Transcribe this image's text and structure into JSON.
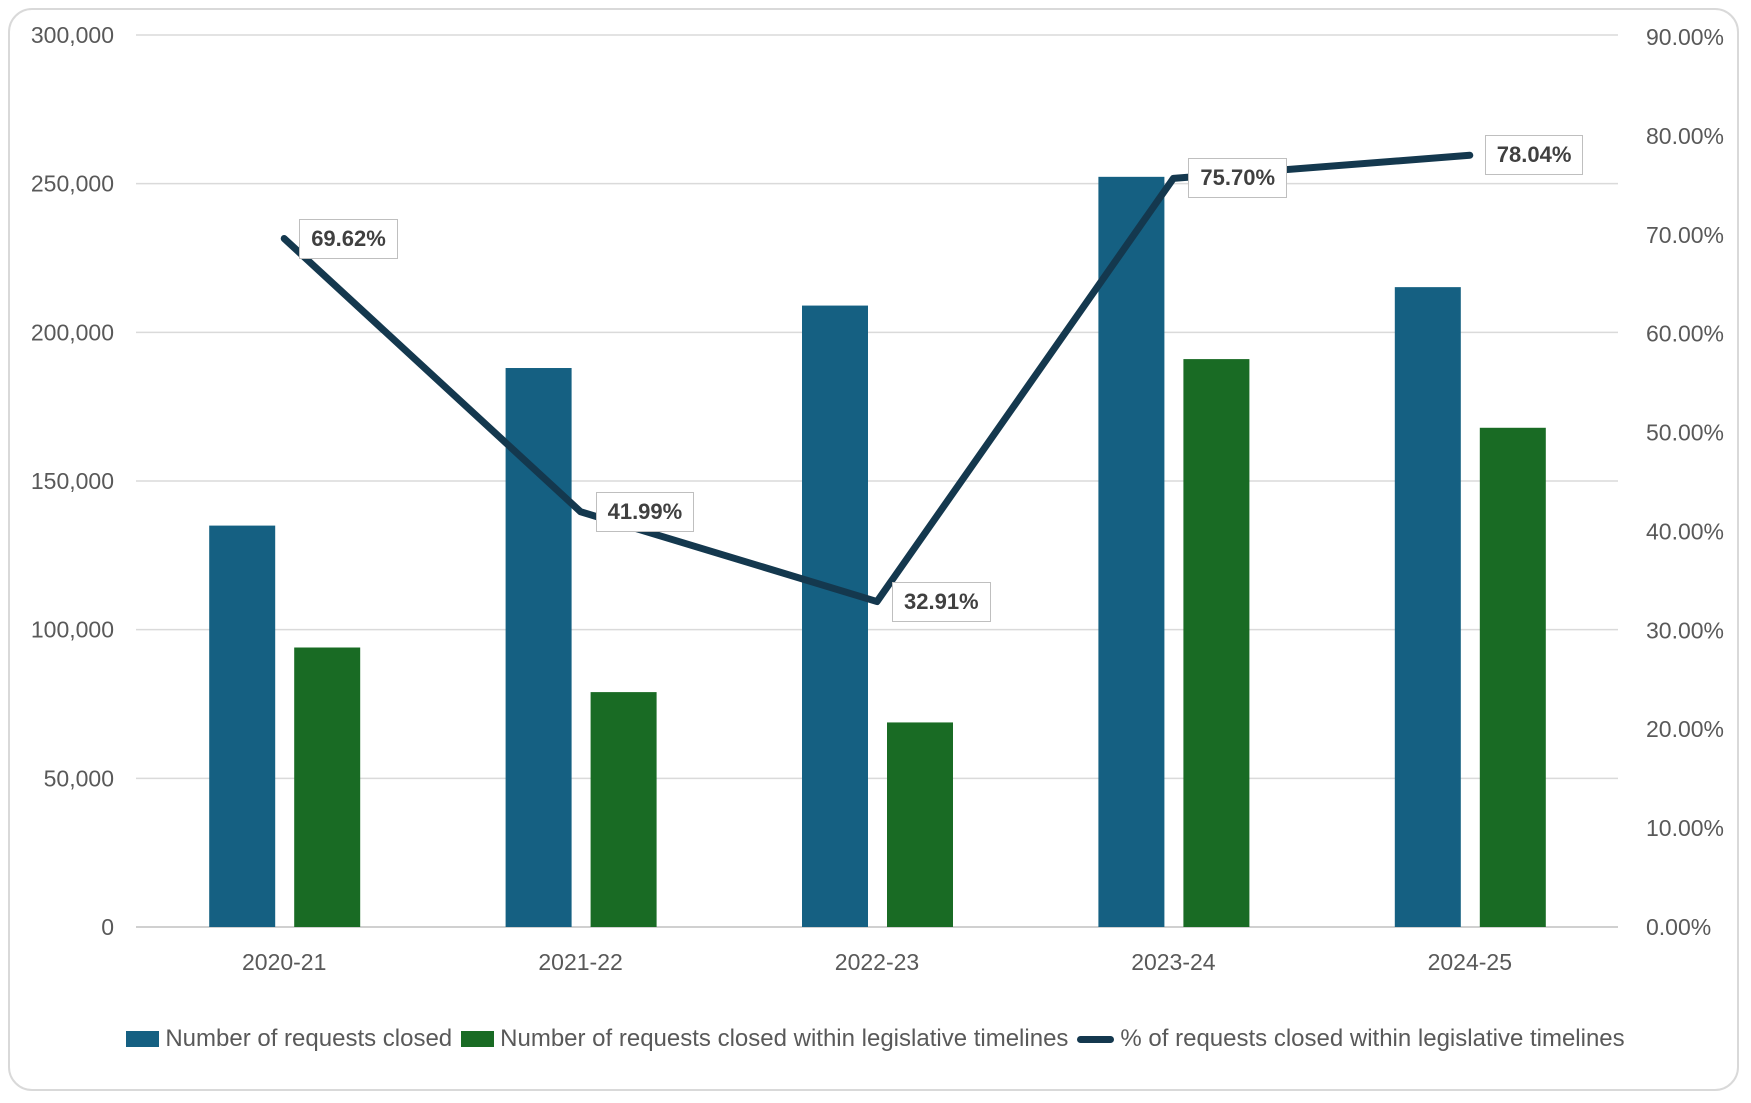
{
  "chart_data": {
    "type": "combo-bar-line",
    "title": "",
    "categories": [
      "2020-21",
      "2021-22",
      "2022-23",
      "2023-24",
      "2024-25"
    ],
    "series": [
      {
        "name": "Number of requests closed",
        "type": "bar",
        "axis": "left",
        "color": "#156082",
        "values": [
          135000,
          188000,
          209000,
          252300,
          215200
        ]
      },
      {
        "name": "Number of requests closed within legislative timelines",
        "type": "bar",
        "axis": "left",
        "color": "#196B24",
        "values": [
          94000,
          79000,
          68800,
          191000,
          167900
        ]
      },
      {
        "name": "% of requests closed within legislative timelines",
        "type": "line",
        "axis": "right",
        "color": "#14384E",
        "values": [
          69.62,
          41.99,
          32.91,
          75.7,
          78.04
        ],
        "data_labels": [
          "69.62%",
          "41.99%",
          "32.91%",
          "75.70%",
          "78.04%"
        ]
      }
    ],
    "left_axis": {
      "min": 0,
      "max": 300000,
      "step": 50000,
      "tick_labels": [
        "0",
        "50,000",
        "100,000",
        "150,000",
        "200,000",
        "250,000",
        "300,000"
      ]
    },
    "right_axis": {
      "min": 0,
      "max": 90,
      "step": 10,
      "tick_labels": [
        "0.00%",
        "10.00%",
        "20.00%",
        "30.00%",
        "40.00%",
        "50.00%",
        "60.00%",
        "70.00%",
        "80.00%",
        "90.00%"
      ]
    },
    "grid": true,
    "legend_position": "bottom"
  },
  "styles": {
    "background": "#FFFFFF",
    "card_border": "#D9D9D9",
    "gridline_color": "#DADADA",
    "axis_line_color": "#D0D0D0",
    "axis_text_color": "#595959",
    "label_box_border": "#BFBFBF",
    "label_text_color": "#404040"
  }
}
